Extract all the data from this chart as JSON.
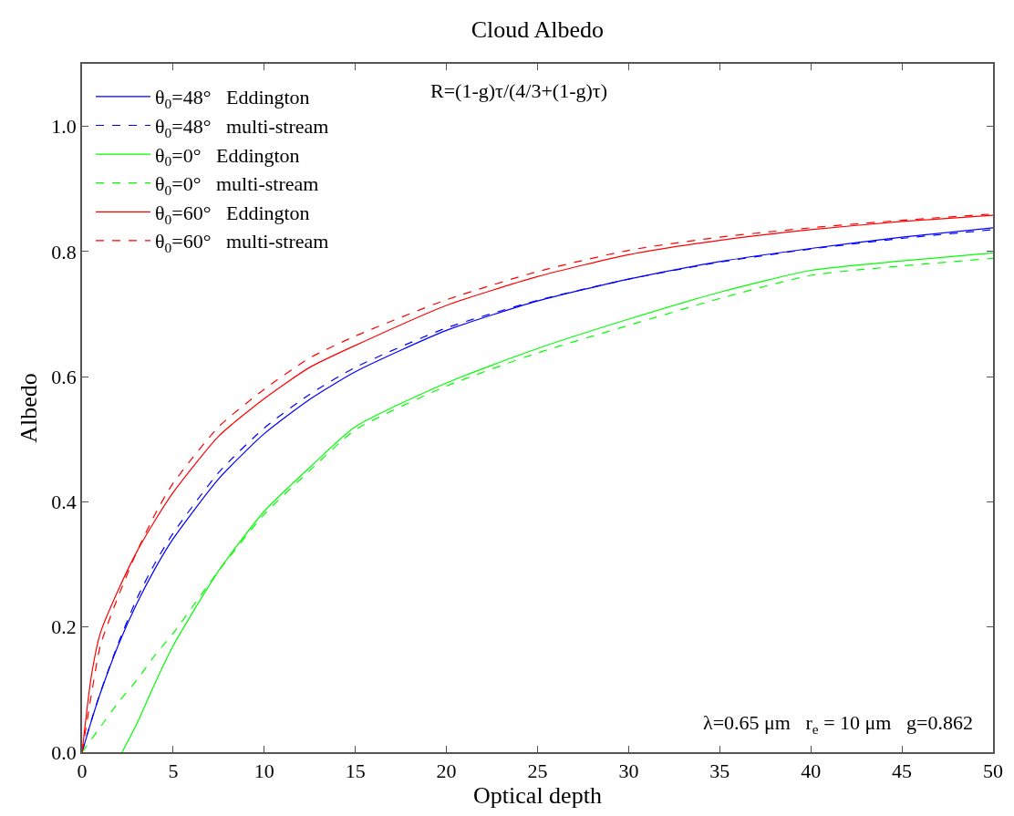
{
  "chart_data": {
    "type": "line",
    "title": "Cloud Albedo",
    "xlabel": "Optical depth",
    "ylabel": "Albedo",
    "x": [
      0,
      0.5,
      1,
      2,
      3,
      4,
      5,
      7.5,
      10,
      12.5,
      15,
      20,
      25,
      30,
      35,
      40,
      45,
      50
    ],
    "series": [
      {
        "name": "θ$_{0}$=48°   Eddington",
        "color": "#0000ff",
        "line_style": "solid",
        "values": [
          0,
          0.049,
          0.094,
          0.172,
          0.237,
          0.293,
          0.341,
          0.437,
          0.509,
          0.564,
          0.608,
          0.674,
          0.721,
          0.756,
          0.784,
          0.805,
          0.823,
          0.838
        ]
      },
      {
        "name": "θ$_{0}$=48°   multi-stream",
        "color": "#0000ff",
        "line_style": "dashed",
        "values": [
          0,
          0.05,
          0.095,
          0.175,
          0.245,
          0.302,
          0.35,
          0.447,
          0.518,
          0.572,
          0.615,
          0.678,
          0.722,
          0.756,
          0.783,
          0.804,
          0.821,
          0.835
        ]
      },
      {
        "name": "θ$_{0}$=0°   Eddington",
        "color": "#00ff00",
        "line_style": "solid",
        "x": [
          2.2,
          3,
          4,
          5,
          7.5,
          10,
          12.5,
          15,
          20,
          25,
          30,
          35,
          40,
          45,
          50
        ],
        "values": [
          0,
          0.045,
          0.11,
          0.17,
          0.29,
          0.385,
          0.455,
          0.52,
          0.59,
          0.645,
          0.692,
          0.735,
          0.77,
          0.785,
          0.798
        ]
      },
      {
        "name": "θ$_{0}$=0°   multi-stream",
        "color": "#00ff00",
        "line_style": "dashed",
        "values": [
          0,
          0.02,
          0.04,
          0.08,
          0.115,
          0.155,
          0.19,
          0.29,
          0.38,
          0.45,
          0.515,
          0.585,
          0.638,
          0.682,
          0.725,
          0.762,
          0.777,
          0.789
        ]
      },
      {
        "name": "θ$_{0}$=60°   Eddington",
        "color": "#ff0000",
        "line_style": "solid",
        "values": [
          0,
          0.12,
          0.19,
          0.26,
          0.32,
          0.37,
          0.415,
          0.505,
          0.565,
          0.615,
          0.65,
          0.714,
          0.76,
          0.795,
          0.818,
          0.835,
          0.848,
          0.858
        ]
      },
      {
        "name": "θ$_{0}$=60°   multi-stream",
        "color": "#ff0000",
        "line_style": "dashed",
        "values": [
          0,
          0.09,
          0.17,
          0.25,
          0.32,
          0.38,
          0.43,
          0.52,
          0.58,
          0.63,
          0.665,
          0.723,
          0.768,
          0.802,
          0.823,
          0.838,
          0.85,
          0.86
        ]
      }
    ],
    "xlim": [
      0,
      50
    ],
    "xticks": [
      0,
      5,
      10,
      15,
      20,
      25,
      30,
      35,
      40,
      45,
      50
    ],
    "ylim": [
      0,
      1.1
    ],
    "yticks": [
      {
        "value": 0,
        "label": "0.0"
      },
      {
        "value": 0.2,
        "label": "0.2"
      },
      {
        "value": 0.4,
        "label": "0.4"
      },
      {
        "value": 0.6,
        "label": "0.6"
      },
      {
        "value": 0.8,
        "label": "0.8"
      },
      {
        "value": 1.0,
        "label": "1.0"
      }
    ],
    "legend": "top left",
    "marker": "none",
    "annotations": [
      "R=(1-g)τ/(4/3+(1-g)τ)",
      "λ=0.65 μm   r$_{e}$ = 10 μm   g=0.862"
    ]
  }
}
